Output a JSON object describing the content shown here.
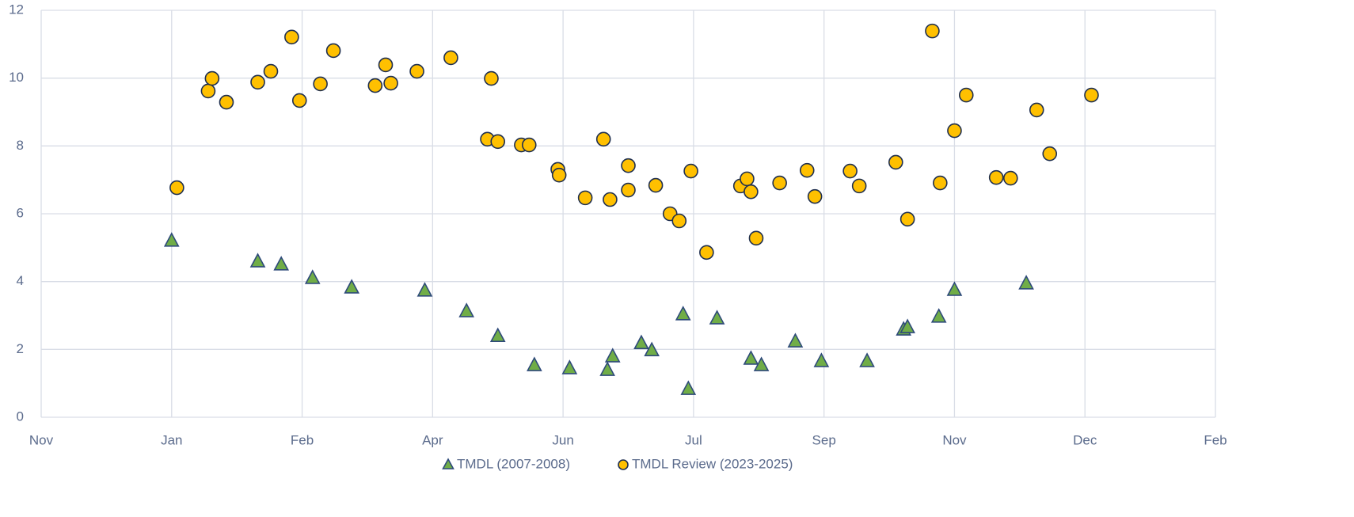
{
  "chart_data": {
    "type": "scatter",
    "xlim": [
      0,
      9
    ],
    "xticks": [
      {
        "value": 0,
        "label": "Nov"
      },
      {
        "value": 1,
        "label": "Jan"
      },
      {
        "value": 2,
        "label": "Feb"
      },
      {
        "value": 3,
        "label": "Apr"
      },
      {
        "value": 4,
        "label": "Jun"
      },
      {
        "value": 5,
        "label": "Jul"
      },
      {
        "value": 6,
        "label": "Sep"
      },
      {
        "value": 7,
        "label": "Nov"
      },
      {
        "value": 8,
        "label": "Dec"
      },
      {
        "value": 9,
        "label": "Feb"
      }
    ],
    "ylim": [
      0,
      12
    ],
    "yticks": [
      0,
      2,
      4,
      6,
      8,
      10,
      12
    ],
    "grid": true,
    "legend": "bottom",
    "series": [
      {
        "name": "TMDL (2007-2008)",
        "marker": "triangle",
        "color": "#70ad47",
        "edge": "#2e4a7a",
        "x": [
          1.0,
          1.66,
          1.84,
          2.08,
          2.38,
          2.94,
          3.26,
          3.5,
          3.78,
          4.05,
          4.34,
          4.38,
          4.6,
          4.68,
          4.92,
          4.96,
          5.18,
          5.44,
          5.52,
          5.78,
          5.98,
          6.33,
          6.61,
          6.64,
          6.88,
          7.0,
          7.55
        ],
        "values": [
          5.21,
          4.6,
          4.51,
          4.11,
          3.83,
          3.74,
          3.13,
          2.4,
          1.54,
          1.45,
          1.4,
          1.8,
          2.19,
          1.98,
          3.04,
          0.84,
          2.92,
          1.73,
          1.54,
          2.24,
          1.66,
          1.66,
          2.59,
          2.66,
          2.97,
          3.76,
          3.95
        ]
      },
      {
        "name": "TMDL Review (2023-2025)",
        "marker": "circle",
        "color": "#ffc000",
        "edge": "#1f2f4f",
        "x": [
          1.04,
          1.28,
          1.31,
          1.42,
          1.66,
          1.76,
          1.92,
          1.98,
          2.14,
          2.24,
          2.56,
          2.64,
          2.68,
          2.88,
          3.14,
          3.42,
          3.45,
          3.5,
          3.68,
          3.74,
          3.96,
          3.97,
          4.17,
          4.31,
          4.36,
          4.5,
          4.5,
          4.71,
          4.82,
          4.89,
          4.98,
          5.1,
          5.36,
          5.41,
          5.44,
          5.48,
          5.66,
          5.87,
          5.93,
          6.2,
          6.27,
          6.55,
          6.64,
          6.83,
          6.89,
          7.0,
          7.09,
          7.32,
          7.43,
          7.63,
          7.73,
          8.05
        ],
        "values": [
          6.77,
          9.62,
          9.99,
          9.29,
          9.88,
          10.2,
          11.21,
          9.34,
          9.83,
          10.81,
          9.78,
          10.39,
          9.85,
          10.2,
          10.6,
          8.2,
          9.99,
          8.13,
          8.03,
          8.03,
          7.31,
          7.14,
          6.47,
          8.2,
          6.42,
          7.42,
          6.7,
          6.84,
          6.0,
          5.79,
          7.26,
          4.86,
          6.82,
          7.03,
          6.65,
          5.28,
          6.91,
          7.28,
          6.51,
          7.26,
          6.82,
          7.52,
          5.84,
          11.39,
          6.91,
          8.45,
          9.5,
          7.07,
          7.05,
          9.06,
          7.77,
          9.5
        ]
      }
    ]
  }
}
